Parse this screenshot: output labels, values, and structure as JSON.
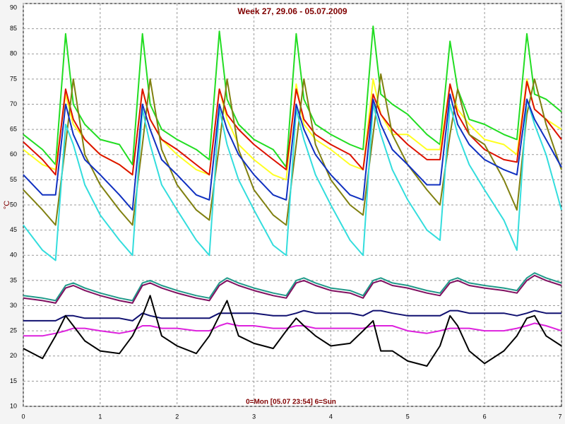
{
  "chart_data": {
    "type": "line",
    "title": "Week 27, 29.06 - 05.07.2009",
    "y_label": "°C",
    "annotation": "0=Mon [05.07 23:54] 6=Sun",
    "x": [
      0,
      0.25,
      0.42,
      0.55,
      0.65,
      0.8,
      1,
      1.25,
      1.42,
      1.55,
      1.65,
      1.8,
      2,
      2.25,
      2.42,
      2.55,
      2.65,
      2.8,
      3,
      3.25,
      3.42,
      3.55,
      3.65,
      3.8,
      4,
      4.25,
      4.42,
      4.55,
      4.65,
      4.8,
      5,
      5.25,
      5.42,
      5.55,
      5.65,
      5.8,
      6,
      6.25,
      6.42,
      6.55,
      6.65,
      6.8,
      7
    ],
    "series": [
      {
        "color": "#22dd22",
        "values": [
          64,
          61,
          58,
          84,
          70,
          66,
          63,
          62,
          58,
          84,
          70,
          65,
          63,
          61,
          59,
          84.5,
          71,
          66,
          63,
          61,
          57.5,
          84,
          71,
          66,
          64,
          62,
          61,
          85.5,
          72,
          70,
          68,
          64,
          62,
          82.5,
          73,
          67,
          66,
          64,
          63,
          84,
          72,
          71,
          68.5
        ]
      },
      {
        "color": "#ffff22",
        "values": [
          61,
          58,
          57,
          72,
          66,
          63,
          60,
          58,
          56,
          73,
          67,
          63,
          60,
          57,
          56,
          73,
          67,
          62,
          59,
          56,
          55,
          74,
          66,
          63,
          61,
          58,
          57,
          75,
          68,
          64,
          64,
          61,
          61,
          74,
          69,
          66,
          63,
          62,
          60,
          75,
          69,
          67,
          65
        ]
      },
      {
        "color": "#dd1100",
        "values": [
          62.5,
          59,
          56,
          73,
          67,
          63,
          60,
          58,
          56,
          73,
          67,
          63,
          61,
          58,
          56,
          73,
          68,
          65,
          62,
          59,
          57,
          73,
          67,
          64,
          62,
          60,
          57,
          72,
          68,
          65,
          62,
          59,
          59,
          74,
          68,
          64,
          61,
          59,
          58.5,
          74.5,
          69,
          67,
          63
        ]
      },
      {
        "color": "#808010",
        "values": [
          53,
          49,
          46,
          62,
          75,
          60,
          54,
          49,
          46,
          62,
          75,
          61,
          54,
          49,
          47,
          62,
          75,
          61,
          53,
          48,
          46,
          62,
          75,
          62,
          55,
          50,
          48,
          64,
          76,
          64,
          58,
          53,
          50,
          64,
          73,
          64,
          62,
          55,
          49,
          68,
          75,
          66,
          57
        ]
      },
      {
        "color": "#33dddd",
        "values": [
          46,
          41,
          39,
          66,
          62,
          54,
          48,
          43,
          40,
          69,
          62,
          54,
          49,
          43,
          40,
          69,
          62,
          55,
          49,
          42,
          40,
          69,
          63,
          56,
          50,
          43,
          40,
          70,
          64,
          57,
          51,
          45,
          43,
          70,
          64,
          58,
          53,
          47,
          41,
          71,
          66,
          60,
          49
        ]
      },
      {
        "color": "#1030c0",
        "values": [
          56,
          52,
          52,
          70,
          64,
          59,
          56,
          52,
          49,
          70,
          65,
          59,
          56,
          52,
          51,
          70,
          65,
          60,
          56,
          52,
          51,
          70,
          65,
          60,
          56,
          52,
          51,
          71,
          66,
          61,
          58,
          54,
          54,
          72,
          66,
          62,
          59,
          57,
          56,
          71,
          67,
          63,
          57.5
        ]
      },
      {
        "color": "#209a8a",
        "values": [
          32,
          31.5,
          31,
          34,
          34.5,
          33.5,
          32.5,
          31.5,
          31,
          34.5,
          35,
          34,
          33,
          32,
          31.5,
          34.5,
          35.5,
          34.5,
          33.5,
          32.5,
          32,
          35,
          35.5,
          34.5,
          33.5,
          33,
          32,
          35,
          35.5,
          34.5,
          34,
          33,
          32.5,
          35,
          35.5,
          34.5,
          34,
          33.5,
          33,
          35.5,
          36.5,
          35.5,
          34.5
        ]
      },
      {
        "color": "#801060",
        "values": [
          31.5,
          31,
          30.5,
          33.5,
          34,
          33,
          32,
          31,
          30.5,
          34,
          34.5,
          33.5,
          32.5,
          31.5,
          31,
          34,
          35,
          34,
          33,
          32,
          31.5,
          34.5,
          35,
          34,
          33,
          32.5,
          31.5,
          34.5,
          35,
          34,
          33.5,
          32.5,
          32,
          34.5,
          35,
          34,
          33.5,
          33,
          32.5,
          35,
          36,
          35,
          34
        ]
      },
      {
        "color": "#101070",
        "values": [
          27,
          27,
          27,
          28,
          28,
          27.5,
          27.5,
          27.5,
          27,
          28.5,
          28,
          27.5,
          27.5,
          27.5,
          27.5,
          28.5,
          28.5,
          28.5,
          28.5,
          28,
          28,
          28.5,
          29,
          28.5,
          28.5,
          28.5,
          28,
          29,
          29,
          28.5,
          28,
          28,
          28,
          29,
          29,
          28.5,
          28.5,
          28.5,
          28,
          28.5,
          29,
          28.5,
          28.5
        ]
      },
      {
        "color": "#dd22dd",
        "values": [
          24,
          24,
          24.5,
          25,
          25.5,
          25.5,
          25,
          24.5,
          25,
          26,
          26,
          25.5,
          25.5,
          25,
          25,
          26,
          26.5,
          26,
          26,
          25.5,
          25.5,
          26,
          26,
          25.5,
          25.5,
          25.5,
          25.5,
          26,
          26,
          26,
          25,
          24.5,
          25,
          25.5,
          25.5,
          25.5,
          25,
          25,
          25.5,
          26,
          26.5,
          26,
          25
        ]
      },
      {
        "color": "#000000",
        "values": [
          21.5,
          19.5,
          24,
          28,
          26,
          23,
          21,
          20.5,
          24,
          28,
          32,
          24,
          22,
          20.5,
          24,
          28,
          31,
          24,
          22.5,
          21.5,
          25,
          27.5,
          26,
          24,
          22,
          22.5,
          25,
          27,
          21,
          21,
          19,
          18,
          22,
          28,
          26,
          21,
          18.5,
          21,
          24,
          27.5,
          28,
          24,
          22
        ]
      }
    ],
    "xlim": [
      0,
      7
    ],
    "xticks": [
      0,
      1,
      2,
      3,
      4,
      5,
      6,
      7
    ],
    "ylim": [
      10,
      90
    ],
    "yticks": [
      10,
      15,
      20,
      25,
      30,
      35,
      40,
      45,
      50,
      55,
      60,
      65,
      70,
      75,
      80,
      85,
      90
    ],
    "grid": true
  }
}
